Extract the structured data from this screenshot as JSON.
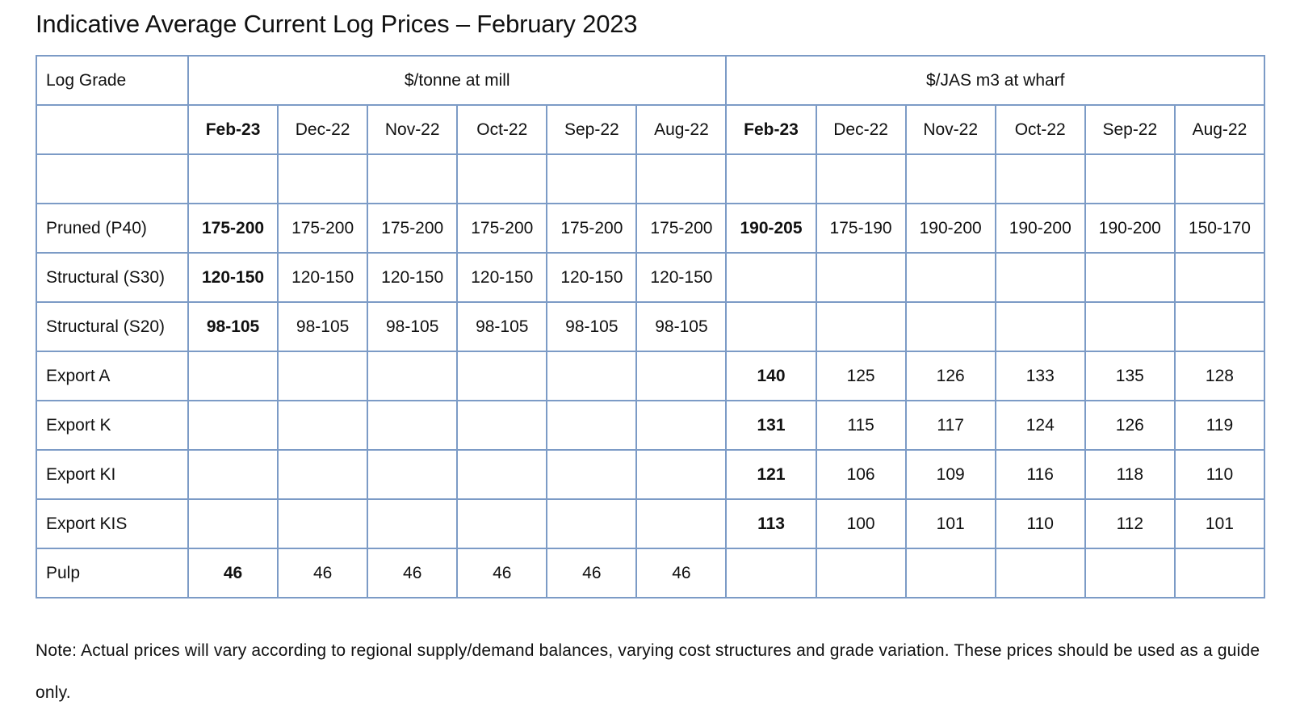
{
  "title": "Indicative Average Current Log Prices – February 2023",
  "table": {
    "corner": "Log Grade",
    "groups": [
      {
        "label": "$/tonne at mill",
        "columns": [
          "Feb-23",
          "Dec-22",
          "Nov-22",
          "Oct-22",
          "Sep-22",
          "Aug-22"
        ]
      },
      {
        "label": "$/JAS m3 at wharf",
        "columns": [
          "Feb-23",
          "Dec-22",
          "Nov-22",
          "Oct-22",
          "Sep-22",
          "Aug-22"
        ]
      }
    ],
    "rows": [
      {
        "grade": "Pruned (P40)",
        "cells": [
          "175-200",
          "175-200",
          "175-200",
          "175-200",
          "175-200",
          "175-200",
          "190-205",
          "175-190",
          "190-200",
          "190-200",
          "190-200",
          "150-170"
        ]
      },
      {
        "grade": "Structural (S30)",
        "cells": [
          "120-150",
          "120-150",
          "120-150",
          "120-150",
          "120-150",
          "120-150",
          null,
          null,
          null,
          null,
          null,
          null
        ]
      },
      {
        "grade": "Structural (S20)",
        "cells": [
          "98-105",
          "98-105",
          "98-105",
          "98-105",
          "98-105",
          "98-105",
          null,
          null,
          null,
          null,
          null,
          null
        ]
      },
      {
        "grade": "Export A",
        "cells": [
          null,
          null,
          null,
          null,
          null,
          null,
          140,
          125,
          126,
          133,
          135,
          128
        ]
      },
      {
        "grade": "Export K",
        "cells": [
          null,
          null,
          null,
          null,
          null,
          null,
          131,
          115,
          117,
          124,
          126,
          119
        ]
      },
      {
        "grade": "Export KI",
        "cells": [
          null,
          null,
          null,
          null,
          null,
          null,
          121,
          106,
          109,
          116,
          118,
          110
        ]
      },
      {
        "grade": "Export KIS",
        "cells": [
          null,
          null,
          null,
          null,
          null,
          null,
          113,
          100,
          101,
          110,
          112,
          101
        ]
      },
      {
        "grade": "Pulp",
        "cells": [
          46,
          46,
          46,
          46,
          46,
          46,
          null,
          null,
          null,
          null,
          null,
          null
        ]
      }
    ]
  },
  "note": "Note: Actual prices will vary according to regional supply/demand balances, varying cost structures and grade variation. These prices should be used as a guide only."
}
